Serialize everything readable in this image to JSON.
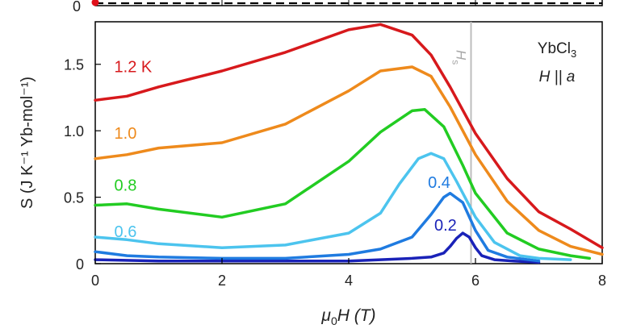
{
  "chart_data": {
    "type": "line",
    "xlabel_prefix": "μ",
    "xlabel_sub": "0",
    "xlabel_suffix": "H (T)",
    "ylabel": "S (J K⁻¹ Yb-mol⁻¹)",
    "xlim": [
      0,
      8
    ],
    "ylim": [
      0,
      1.82
    ],
    "xticks": [
      "0",
      "2",
      "4",
      "6",
      "8"
    ],
    "xtick_values": [
      0,
      2,
      4,
      6,
      8
    ],
    "yticks": [
      "0",
      "0.5",
      "1.0",
      "1.5"
    ],
    "ytick_values": [
      0,
      0.5,
      1.0,
      1.5
    ],
    "top_panel_tick_label": "0",
    "annotation_main": "YbCl",
    "annotation_sub": "3",
    "annotation_field": "H || a",
    "critical_field_label": "H",
    "critical_field_sub": "s",
    "critical_field_value": 5.93,
    "series": [
      {
        "name": "1.2 K",
        "color": "#d7191c",
        "label_pos": [
          0.3,
          1.44
        ],
        "x": [
          0,
          0.5,
          1,
          2,
          3,
          4,
          4.5,
          5,
          5.3,
          5.6,
          6,
          6.5,
          7,
          7.5,
          8
        ],
        "y": [
          1.23,
          1.26,
          1.33,
          1.45,
          1.59,
          1.76,
          1.8,
          1.72,
          1.57,
          1.33,
          0.98,
          0.64,
          0.39,
          0.26,
          0.12
        ]
      },
      {
        "name": "1.0",
        "color": "#ee8a1c",
        "label_pos": [
          0.3,
          0.94
        ],
        "x": [
          0,
          0.5,
          1,
          2,
          3,
          4,
          4.5,
          5,
          5.3,
          5.6,
          6,
          6.5,
          7,
          7.5,
          8
        ],
        "y": [
          0.79,
          0.82,
          0.87,
          0.91,
          1.05,
          1.3,
          1.45,
          1.48,
          1.41,
          1.18,
          0.82,
          0.47,
          0.25,
          0.13,
          0.07
        ]
      },
      {
        "name": "0.8",
        "color": "#22cc22",
        "label_pos": [
          0.3,
          0.55
        ],
        "x": [
          0,
          0.5,
          1,
          2,
          3,
          4,
          4.5,
          5,
          5.2,
          5.5,
          5.8,
          6,
          6.5,
          7,
          7.5,
          7.8
        ],
        "y": [
          0.44,
          0.45,
          0.41,
          0.35,
          0.45,
          0.77,
          0.99,
          1.15,
          1.16,
          1.03,
          0.74,
          0.53,
          0.23,
          0.11,
          0.06,
          0.04
        ]
      },
      {
        "name": "0.6",
        "color": "#4cc4ee",
        "label_pos": [
          0.3,
          0.2
        ],
        "x": [
          0,
          0.5,
          1,
          2,
          3,
          4,
          4.5,
          4.8,
          5.1,
          5.3,
          5.5,
          5.7,
          6,
          6.3,
          6.7,
          7,
          7.5
        ],
        "y": [
          0.2,
          0.18,
          0.15,
          0.12,
          0.14,
          0.23,
          0.38,
          0.6,
          0.79,
          0.83,
          0.79,
          0.62,
          0.35,
          0.16,
          0.06,
          0.04,
          0.03
        ]
      },
      {
        "name": "0.4",
        "color": "#1f7be0",
        "label_pos": [
          5.25,
          0.57
        ],
        "x": [
          0,
          0.5,
          1,
          2,
          3,
          4,
          4.5,
          5,
          5.3,
          5.5,
          5.6,
          5.8,
          6,
          6.2,
          6.5,
          7
        ],
        "y": [
          0.09,
          0.06,
          0.05,
          0.04,
          0.04,
          0.07,
          0.11,
          0.2,
          0.37,
          0.5,
          0.53,
          0.46,
          0.25,
          0.1,
          0.05,
          0.02
        ]
      },
      {
        "name": "0.2",
        "color": "#1a22b8",
        "label_pos": [
          5.35,
          0.25
        ],
        "x": [
          0,
          1,
          2,
          3,
          4,
          4.5,
          5,
          5.3,
          5.5,
          5.6,
          5.7,
          5.8,
          5.9,
          6,
          6.1,
          6.3,
          6.6,
          7
        ],
        "y": [
          0.03,
          0.02,
          0.02,
          0.02,
          0.02,
          0.03,
          0.04,
          0.05,
          0.08,
          0.13,
          0.19,
          0.23,
          0.2,
          0.12,
          0.06,
          0.03,
          0.02,
          0.01
        ]
      }
    ]
  }
}
